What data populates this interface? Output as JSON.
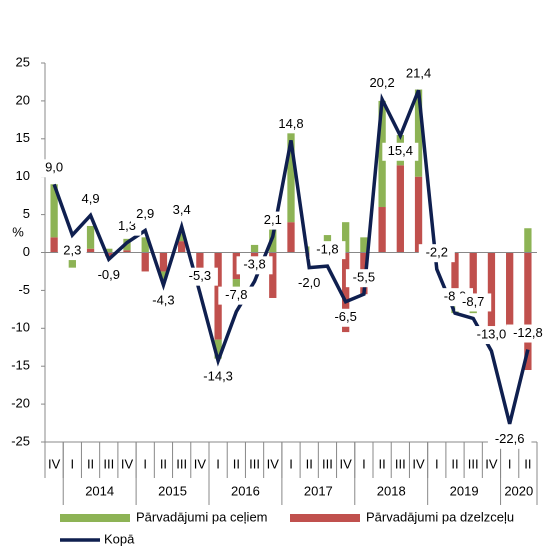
{
  "chart_data": {
    "type": "bar-line",
    "y_axis_label": "%",
    "categories": [
      "IV",
      "I",
      "II",
      "III",
      "IV",
      "I",
      "II",
      "III",
      "IV",
      "I",
      "II",
      "III",
      "IV",
      "I",
      "II",
      "III",
      "IV",
      "I",
      "II",
      "III",
      "IV",
      "I",
      "II",
      "III",
      "IV",
      "I",
      "II"
    ],
    "x_groups": [
      "2014",
      "2015",
      "2016",
      "2017",
      "2018",
      "2019",
      "2020"
    ],
    "series": [
      {
        "name": "Pārvadājumi pa dzelzceļu",
        "kind": "bar",
        "color": "#c0504d",
        "values": [
          2.0,
          0.5,
          0.5,
          -0.5,
          0.3,
          -2.5,
          -2.5,
          1.5,
          -3.5,
          -11.5,
          -3.5,
          -2.0,
          -6.0,
          4.0,
          -0.5,
          -0.5,
          -10.5,
          -5.5,
          6.0,
          11.5,
          10.0,
          -0.5,
          -6.0,
          -7.0,
          -10.0,
          -11.0,
          -15.5
        ]
      },
      {
        "name": "Pārvadājumi pa ceļiem",
        "kind": "bar",
        "color": "#8db355",
        "values": [
          7.0,
          -2.0,
          3.0,
          0.5,
          1.5,
          2.0,
          -1.0,
          1.0,
          -0.5,
          -2.5,
          -1.5,
          1.0,
          4.0,
          12.5,
          0.8,
          2.3,
          4.0,
          2.0,
          14.0,
          4.0,
          11.5,
          -0.3,
          -2.0,
          -1.0,
          -1.5,
          0.0,
          3.2
        ]
      },
      {
        "name": "Kopā",
        "kind": "line",
        "color": "#0f1f4f",
        "values": [
          9.0,
          2.3,
          4.9,
          -0.9,
          1.3,
          2.9,
          -4.3,
          3.4,
          -5.3,
          -14.3,
          -7.8,
          -3.8,
          2.1,
          14.8,
          -2.0,
          -1.8,
          -6.5,
          -5.5,
          20.2,
          15.4,
          21.4,
          -2.2,
          -8.0,
          -8.7,
          -13.0,
          -22.6,
          -12.8
        ],
        "value_labels": [
          "9,0",
          "2,3",
          "4,9",
          "-0,9",
          "1,3",
          "2,9",
          "-4,3",
          "3,4",
          "-5,3",
          "-14,3",
          "-7,8",
          "-3,8",
          "2,1",
          "14,8",
          "-2,0",
          "-1,8",
          "-6,5",
          "-5,5",
          "20,2",
          "15,4",
          "21,4",
          "-2,2",
          "-8,0",
          "-8,7",
          "-13,0",
          "-22,6",
          "-12,8"
        ]
      }
    ],
    "ylim": [
      -25,
      25
    ],
    "yticks": [
      -25,
      -20,
      -15,
      -10,
      -5,
      0,
      5,
      10,
      15,
      20,
      25
    ],
    "legend": "bottom"
  }
}
